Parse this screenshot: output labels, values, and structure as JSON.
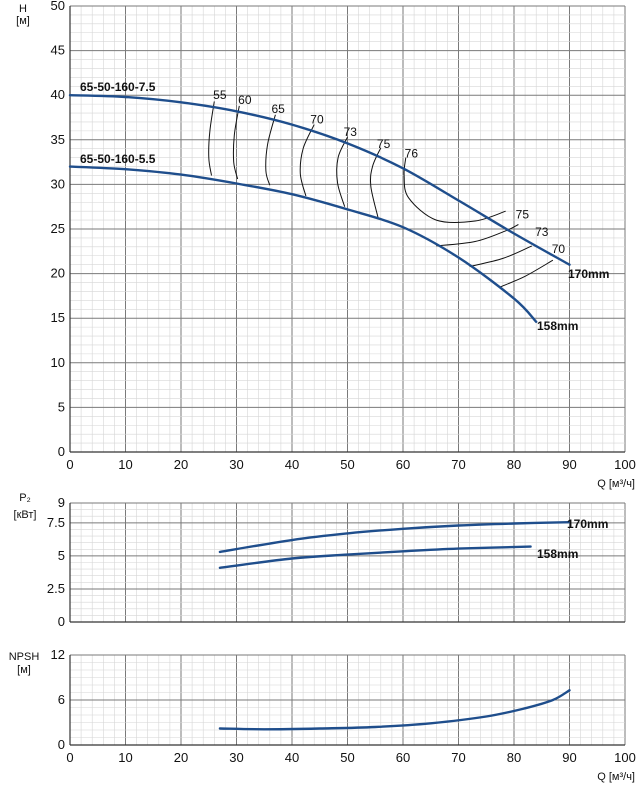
{
  "chart_data": [
    {
      "type": "line",
      "title": "",
      "ylabel_lines": [
        "H",
        "[м]"
      ],
      "xlabel": "Q [м³/ч]",
      "xlim": [
        0,
        100
      ],
      "ylim": [
        0,
        50
      ],
      "xticks": [
        "0",
        "10",
        "20",
        "30",
        "40",
        "50",
        "60",
        "70",
        "80",
        "90",
        "100"
      ],
      "yticks": [
        "0",
        "5",
        "10",
        "15",
        "20",
        "25",
        "30",
        "35",
        "40",
        "45",
        "50"
      ],
      "grid": true,
      "series": [
        {
          "name": "65-50-160-7.5",
          "end_label": "170mm",
          "color": "#1f4e8c",
          "x": [
            0,
            10,
            20,
            30,
            40,
            50,
            60,
            70,
            80,
            90
          ],
          "y": [
            40,
            39.8,
            39.2,
            38.2,
            36.7,
            34.6,
            31.8,
            28.2,
            24.5,
            21
          ]
        },
        {
          "name": "65-50-160-5.5",
          "end_label": "158mm",
          "color": "#1f4e8c",
          "x": [
            0,
            10,
            20,
            30,
            40,
            50,
            60,
            70,
            80,
            84
          ],
          "y": [
            32,
            31.7,
            31.1,
            30.1,
            28.9,
            27.2,
            25.2,
            21.8,
            17.2,
            14.6
          ]
        }
      ],
      "efficiency_labels": [
        {
          "text": "55",
          "x": 27,
          "y": 39.6
        },
        {
          "text": "60",
          "x": 31.5,
          "y": 39
        },
        {
          "text": "65",
          "x": 37.5,
          "y": 38
        },
        {
          "text": "70",
          "x": 44.5,
          "y": 36.8
        },
        {
          "text": "73",
          "x": 50.5,
          "y": 35.4
        },
        {
          "text": "75",
          "x": 56.5,
          "y": 34.1
        },
        {
          "text": "76",
          "x": 61.5,
          "y": 33
        },
        {
          "text": "75",
          "x": 81.5,
          "y": 26.2
        },
        {
          "text": "73",
          "x": 85,
          "y": 24.2
        },
        {
          "text": "70",
          "x": 88,
          "y": 22.3
        }
      ],
      "efficiency_curves": [
        {
          "x": [
            26,
            25.2,
            25,
            25.5
          ],
          "y": [
            39.3,
            36,
            33,
            31
          ]
        },
        {
          "x": [
            30.5,
            29.6,
            29.5,
            30.2
          ],
          "y": [
            38.8,
            35.5,
            32.5,
            30.6
          ]
        },
        {
          "x": [
            37,
            35.6,
            35.3,
            36
          ],
          "y": [
            37.8,
            34.5,
            31.5,
            29.9
          ]
        },
        {
          "x": [
            44,
            42,
            41.5,
            42.5
          ],
          "y": [
            36.7,
            34,
            31.2,
            28.7
          ]
        },
        {
          "x": [
            50,
            48.3,
            48.2,
            49.5
          ],
          "y": [
            35.3,
            33,
            30.2,
            27.5
          ]
        },
        {
          "x": [
            56,
            54.5,
            54.2,
            55.5
          ],
          "y": [
            34.1,
            32,
            29.8,
            26.3
          ]
        },
        {
          "x": [
            60.5,
            60.2,
            61,
            66,
            73,
            78.5
          ],
          "y": [
            33,
            31,
            28.5,
            26,
            25.9,
            27
          ]
        },
        {
          "x": [
            66,
            73,
            78.5,
            80.8
          ],
          "y": [
            23.1,
            23.6,
            24.8,
            25.5
          ]
        },
        {
          "x": [
            72,
            78,
            83.2
          ],
          "y": [
            20.8,
            21.7,
            23.1
          ]
        },
        {
          "x": [
            77.5,
            82,
            87
          ],
          "y": [
            18.5,
            19.7,
            21.5
          ]
        }
      ]
    },
    {
      "type": "line",
      "title": "",
      "ylabel_lines": [
        "P₂",
        "[кВт]"
      ],
      "xlim": [
        0,
        100
      ],
      "ylim": [
        0,
        9
      ],
      "yticks": [
        "0",
        "2.5",
        "5",
        "7.5",
        "9"
      ],
      "ytick_values": [
        0,
        2.5,
        5,
        7.5,
        9
      ],
      "grid": true,
      "series": [
        {
          "name": "170mm",
          "color": "#1f4e8c",
          "x": [
            27,
            40,
            50,
            60,
            70,
            80,
            90
          ],
          "y": [
            5.3,
            6.2,
            6.7,
            7.05,
            7.3,
            7.45,
            7.55
          ]
        },
        {
          "name": "158mm",
          "color": "#1f4e8c",
          "x": [
            27,
            40,
            50,
            60,
            70,
            83
          ],
          "y": [
            4.1,
            4.8,
            5.1,
            5.35,
            5.55,
            5.7
          ]
        }
      ]
    },
    {
      "type": "line",
      "title": "",
      "ylabel_lines": [
        "NPSH",
        "[м]"
      ],
      "xlabel": "Q [м³/ч]",
      "xlim": [
        0,
        100
      ],
      "ylim": [
        0,
        12
      ],
      "xticks": [
        "0",
        "10",
        "20",
        "30",
        "40",
        "50",
        "60",
        "70",
        "80",
        "90",
        "100"
      ],
      "yticks": [
        "0",
        "6",
        "12"
      ],
      "ytick_values": [
        0,
        6,
        12
      ],
      "grid": true,
      "series": [
        {
          "name": "",
          "color": "#1f4e8c",
          "x": [
            27,
            35,
            45,
            55,
            65,
            75,
            82,
            87,
            90
          ],
          "y": [
            2.2,
            2.1,
            2.2,
            2.4,
            2.9,
            3.8,
            4.9,
            6.0,
            7.3
          ]
        }
      ]
    }
  ]
}
